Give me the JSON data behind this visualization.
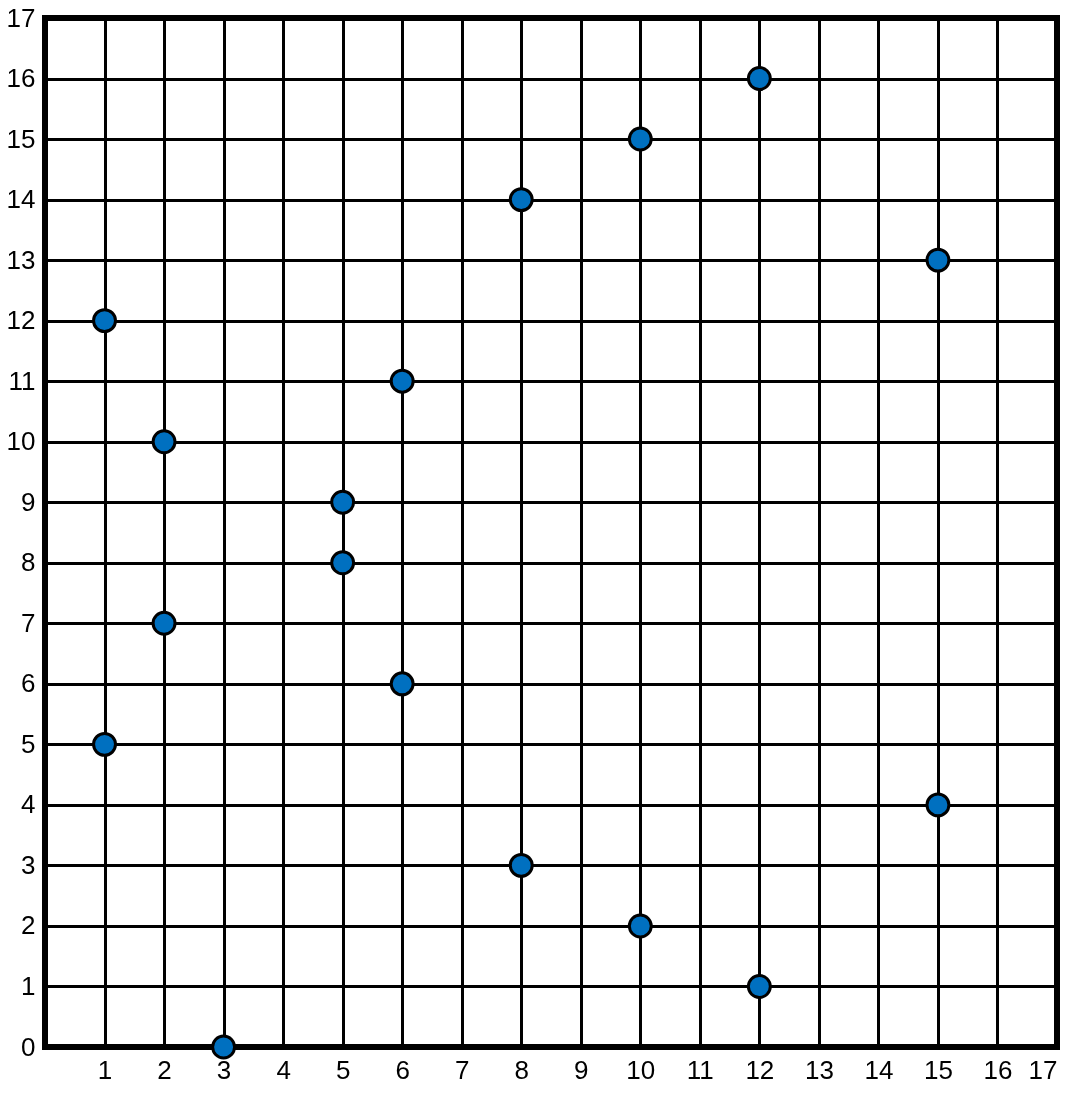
{
  "chart_data": {
    "type": "scatter",
    "xlim": [
      0,
      17
    ],
    "ylim": [
      0,
      17
    ],
    "xticks": [
      1,
      2,
      3,
      4,
      5,
      6,
      7,
      8,
      9,
      10,
      11,
      12,
      13,
      14,
      15,
      16,
      17
    ],
    "yticks": [
      0,
      1,
      2,
      3,
      4,
      5,
      6,
      7,
      8,
      9,
      10,
      11,
      12,
      13,
      14,
      15,
      16,
      17
    ],
    "grid": true,
    "marker": "circle",
    "series": [
      {
        "color": "#0070c0",
        "x": [
          1,
          1,
          2,
          2,
          3,
          5,
          5,
          6,
          6,
          8,
          8,
          10,
          10,
          12,
          12,
          15,
          15
        ],
        "values": [
          12,
          5,
          10,
          7,
          0,
          9,
          8,
          11,
          6,
          14,
          3,
          15,
          2,
          16,
          1,
          13,
          4
        ]
      }
    ]
  }
}
